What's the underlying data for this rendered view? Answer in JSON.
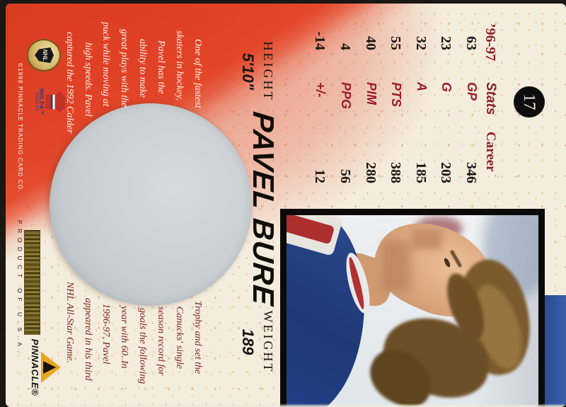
{
  "card": {
    "number": "17",
    "player_name": "PAVEL BURE",
    "height_label": "HEIGHT",
    "height_value": "5'10\"",
    "weight_label": "WEIGHT",
    "weight_value": "189",
    "stats": {
      "season_header": "’96-97",
      "stats_header": "Stats",
      "career_header": "Career",
      "rows": [
        {
          "season": "63",
          "label": "GP",
          "career": "346"
        },
        {
          "season": "23",
          "label": "G",
          "career": "203"
        },
        {
          "season": "32",
          "label": "A",
          "career": "185"
        },
        {
          "season": "55",
          "label": "PTS",
          "career": "388"
        },
        {
          "season": "40",
          "label": "PIM",
          "career": "280"
        },
        {
          "season": "4",
          "label": "PPG",
          "career": "56"
        },
        {
          "season": "-14",
          "label": "+/-",
          "career": "12"
        }
      ]
    },
    "bio_left_lines": [
      "One of the fastest",
      "skaters in hockey,",
      "Pavel has the",
      "ability to make",
      "great plays with the",
      "puck while moving at",
      "high speeds. Pavel",
      "captured the 1992 Calder"
    ],
    "bio_right_lines": [
      "Trophy and set the",
      "Canucks' single",
      "season record for",
      "goals the following",
      "year with 60. In",
      "1996-97, Pavel",
      "appeared in his third",
      "NHL All-Star Game."
    ],
    "footer": {
      "copyright": "©1998 PINNACLE TRADING CARD CO.",
      "product": "PRODUCT OF U.S.A.",
      "nhl_text": "NHL",
      "nhlpa_text": "NHLPA™",
      "nhlpa_sub": "©NHLPA",
      "pinnacle_text": "PINNACLE®"
    },
    "colors": {
      "red_wash": "#e0442a",
      "maroon_text": "#8e1f2b",
      "cream_bg": "#f4edde",
      "puck_gray": "#c9ced2",
      "jersey_blue": "#27498e"
    }
  }
}
